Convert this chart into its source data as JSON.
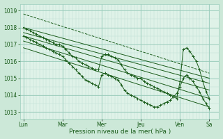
{
  "bg_color": "#cce8d8",
  "plot_bg_color": "#dff2e8",
  "grid_color_major": "#99ccbb",
  "grid_color_minor": "#bbddd0",
  "line_color": "#1a5c1a",
  "xlabel": "Pression niveau de la mer( hPa )",
  "ylim": [
    1012.6,
    1019.4
  ],
  "yticks": [
    1013,
    1014,
    1015,
    1016,
    1017,
    1018,
    1019
  ],
  "day_labels": [
    "Lun",
    "Mar",
    "Mer",
    "Jeu",
    "Ven",
    "Sa"
  ],
  "day_positions": [
    0,
    24,
    48,
    72,
    96,
    114
  ],
  "xlim": [
    -2,
    120
  ],
  "straight_lines": [
    {
      "x0": 0,
      "y0": 1018.8,
      "x1": 114,
      "y1": 1015.3,
      "dashed": true
    },
    {
      "x0": 0,
      "y0": 1018.0,
      "x1": 114,
      "y1": 1015.0,
      "dashed": false
    },
    {
      "x0": 0,
      "y0": 1017.7,
      "x1": 114,
      "y1": 1014.7,
      "dashed": false
    },
    {
      "x0": 0,
      "y0": 1017.5,
      "x1": 114,
      "y1": 1014.3,
      "dashed": false
    },
    {
      "x0": 0,
      "y0": 1017.2,
      "x1": 114,
      "y1": 1013.8,
      "dashed": false
    },
    {
      "x0": 0,
      "y0": 1016.8,
      "x1": 114,
      "y1": 1013.3,
      "dashed": false
    }
  ],
  "wiggly_x": [
    0,
    2,
    4,
    6,
    8,
    10,
    12,
    14,
    16,
    18,
    20,
    22,
    24,
    26,
    28,
    30,
    32,
    34,
    36,
    38,
    40,
    42,
    44,
    46,
    48,
    50,
    52,
    54,
    56,
    58,
    60,
    62,
    64,
    66,
    68,
    70,
    72,
    74,
    76,
    78,
    80,
    82,
    84,
    86,
    88,
    90,
    92,
    94,
    96,
    98,
    100,
    102,
    104,
    106,
    108,
    110,
    112,
    114
  ],
  "wiggly_y": [
    1018.0,
    1017.9,
    1017.8,
    1017.7,
    1017.6,
    1017.5,
    1017.4,
    1017.3,
    1017.2,
    1017.1,
    1017.0,
    1017.0,
    1016.9,
    1016.7,
    1016.5,
    1016.3,
    1016.2,
    1016.0,
    1015.9,
    1015.8,
    1015.7,
    1015.6,
    1015.5,
    1015.5,
    1016.3,
    1016.4,
    1016.4,
    1016.3,
    1016.2,
    1016.1,
    1015.8,
    1015.5,
    1015.3,
    1015.2,
    1015.1,
    1015.0,
    1015.0,
    1014.8,
    1014.7,
    1014.6,
    1014.5,
    1014.4,
    1014.3,
    1014.2,
    1014.1,
    1014.0,
    1013.9,
    1013.8,
    1014.8,
    1016.7,
    1016.8,
    1016.6,
    1016.3,
    1016.0,
    1015.5,
    1014.8,
    1014.2,
    1013.8
  ],
  "wiggly2_x": [
    0,
    2,
    4,
    6,
    8,
    10,
    12,
    14,
    16,
    18,
    20,
    22,
    24,
    26,
    28,
    30,
    32,
    34,
    36,
    38,
    40,
    42,
    44,
    46,
    48,
    50,
    52,
    54,
    56,
    58,
    60,
    62,
    64,
    66,
    68,
    70,
    72,
    74,
    76,
    78,
    80,
    82,
    84,
    86,
    88,
    90,
    92,
    94,
    96,
    98,
    100,
    102,
    104,
    106,
    108,
    110,
    112,
    114
  ],
  "wiggly2_y": [
    1017.5,
    1017.4,
    1017.3,
    1017.2,
    1017.1,
    1017.0,
    1016.9,
    1016.8,
    1016.7,
    1016.6,
    1016.5,
    1016.4,
    1016.3,
    1016.1,
    1015.9,
    1015.7,
    1015.5,
    1015.3,
    1015.1,
    1014.9,
    1014.8,
    1014.7,
    1014.6,
    1014.5,
    1015.2,
    1015.3,
    1015.2,
    1015.1,
    1015.0,
    1014.9,
    1014.6,
    1014.3,
    1014.1,
    1014.0,
    1013.9,
    1013.8,
    1013.7,
    1013.6,
    1013.5,
    1013.4,
    1013.3,
    1013.3,
    1013.4,
    1013.5,
    1013.6,
    1013.7,
    1013.9,
    1014.1,
    1014.5,
    1015.0,
    1015.2,
    1015.0,
    1014.8,
    1014.5,
    1014.2,
    1013.8,
    1013.5,
    1013.2
  ]
}
